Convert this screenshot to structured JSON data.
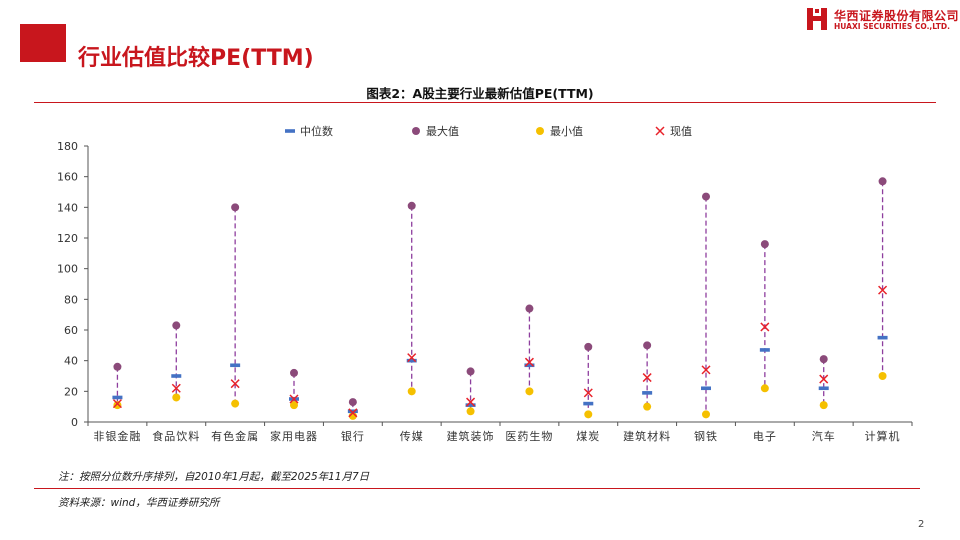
{
  "header": {
    "page_title": "行业估值比较PE(TTM)",
    "logo_cn": "华西证券股份有限公司",
    "logo_en": "HUAXI SECURITIES CO.,LTD."
  },
  "colors": {
    "brand_red": "#c8161d",
    "median": "#4472c4",
    "max": "#8b4a7a",
    "min": "#f5c000",
    "current": "#e8222a",
    "range_line": "#8e3e9e"
  },
  "chart_data": {
    "type": "scatter",
    "title": "图表2：A股主要行业最新估值PE(TTM)",
    "categories": [
      "非银金融",
      "食品饮料",
      "有色金属",
      "家用电器",
      "银行",
      "传媒",
      "建筑装饰",
      "医药生物",
      "煤炭",
      "建筑材料",
      "钢铁",
      "电子",
      "汽车",
      "计算机"
    ],
    "series": [
      {
        "name": "中位数",
        "marker": "dash",
        "values": [
          16,
          30,
          37,
          15,
          7,
          40,
          11,
          37,
          12,
          19,
          22,
          47,
          22,
          55
        ]
      },
      {
        "name": "最大值",
        "marker": "circle",
        "values": [
          36,
          63,
          140,
          32,
          13,
          141,
          33,
          74,
          49,
          50,
          147,
          116,
          41,
          157
        ]
      },
      {
        "name": "最小值",
        "marker": "circle",
        "values": [
          11,
          16,
          12,
          11,
          4,
          20,
          7,
          20,
          5,
          10,
          5,
          22,
          11,
          30
        ]
      },
      {
        "name": "现值",
        "marker": "x",
        "values": [
          12,
          22,
          25,
          15,
          6,
          42,
          13,
          39,
          19,
          29,
          34,
          62,
          28,
          86
        ]
      }
    ],
    "ylim": [
      0,
      180
    ],
    "yticks": [
      0,
      20,
      40,
      60,
      80,
      100,
      120,
      140,
      160,
      180
    ],
    "ytick_labels": [
      "0",
      "20",
      "40",
      "60",
      "80",
      "100",
      "120",
      "140",
      "160",
      "180"
    ],
    "legend_position": "top",
    "grid": false
  },
  "footer": {
    "note": "注：按照分位数升序排列，自2010年1月起，截至2025年11月7日",
    "source": "资料来源：wind，华西证券研究所",
    "page_number": "2"
  }
}
